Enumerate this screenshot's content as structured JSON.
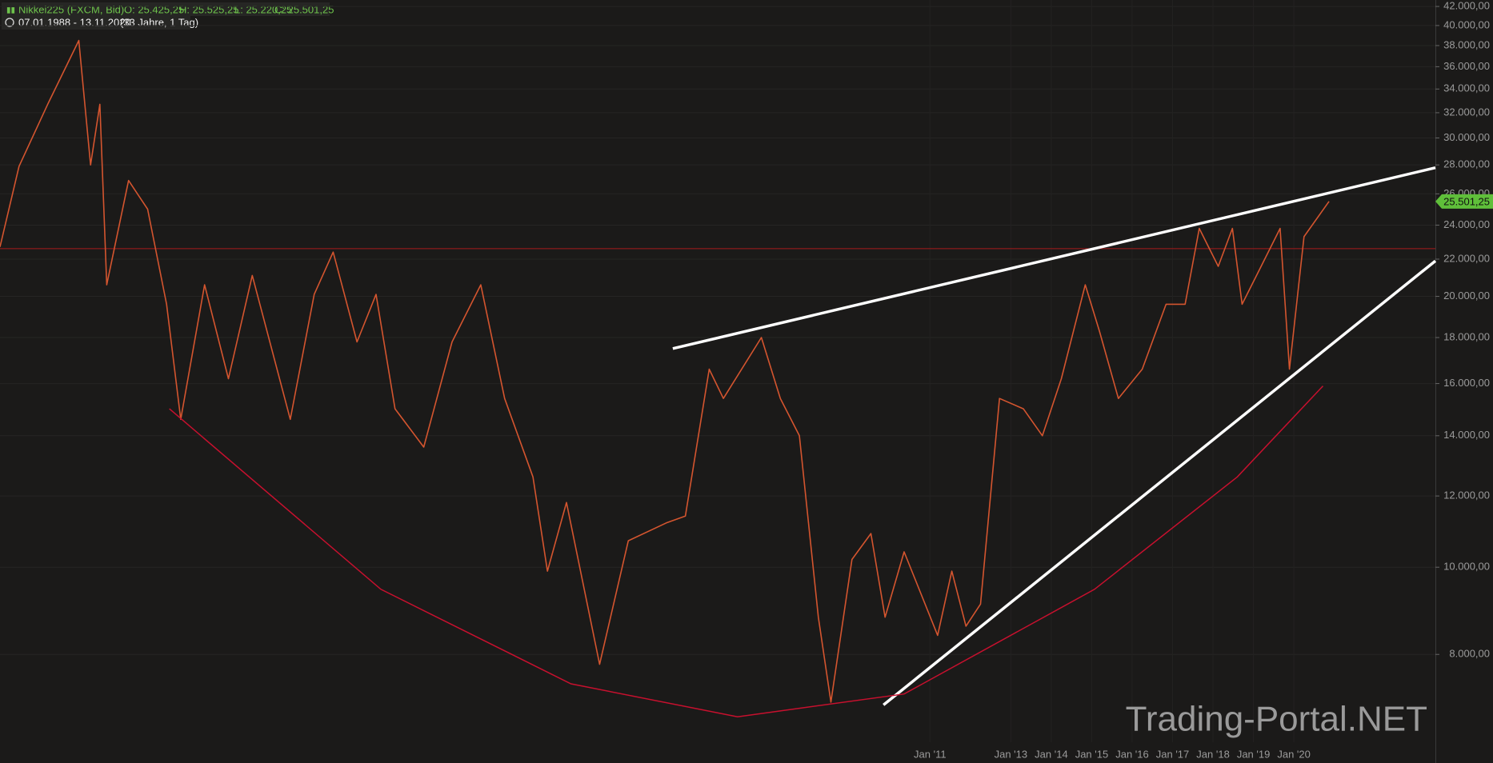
{
  "header": {
    "symbol": "Nikkei225 (FXCM, Bid)",
    "open": "O: 25.425,25",
    "high": "H: 25.525,25",
    "low": "L: 25.220,25",
    "close": "C: 25.501,25",
    "range": "07.01.1988 - 13.11.2020",
    "duration": "(33 Jahre, 1 Tag)"
  },
  "watermark": "Trading-Portal.NET",
  "chart_data": {
    "type": "line",
    "log": true,
    "grid": true,
    "color": "#d4552f",
    "x": [
      1988.0,
      1988.47,
      1989.18,
      1989.95,
      1990.24,
      1990.47,
      1990.64,
      1991.18,
      1991.65,
      1992.12,
      1992.47,
      1993.06,
      1993.65,
      1994.24,
      1995.18,
      1995.77,
      1996.24,
      1996.83,
      1997.3,
      1997.77,
      1998.48,
      1999.18,
      1999.89,
      2000.48,
      2001.18,
      2001.54,
      2002.01,
      2002.83,
      2003.54,
      2004.48,
      2004.95,
      2005.54,
      2005.89,
      2006.83,
      2007.3,
      2007.77,
      2008.24,
      2008.55,
      2009.07,
      2009.54,
      2009.89,
      2010.36,
      2011.19,
      2011.54,
      2011.89,
      2012.25,
      2012.72,
      2013.31,
      2013.78,
      2014.25,
      2014.84,
      2015.19,
      2015.66,
      2016.25,
      2016.84,
      2017.31,
      2017.66,
      2018.13,
      2018.48,
      2018.72,
      2019.19,
      2019.66,
      2019.89,
      2020.25,
      2020.87
    ],
    "values": [
      22700,
      27900,
      32700,
      38500,
      28000,
      32700,
      20600,
      26900,
      25000,
      19600,
      14600,
      20600,
      16200,
      21100,
      14600,
      20100,
      22400,
      17800,
      20100,
      15000,
      13600,
      17800,
      20600,
      15400,
      12600,
      9900,
      11800,
      7800,
      10700,
      11200,
      11400,
      16600,
      15400,
      18000,
      15400,
      14000,
      8800,
      7080,
      10200,
      10900,
      8800,
      10400,
      8400,
      9900,
      8600,
      9100,
      15400,
      15000,
      14000,
      16200,
      20600,
      18300,
      15400,
      16600,
      19600,
      19600,
      23800,
      21600,
      23800,
      19600,
      21600,
      23800,
      16600,
      23300,
      25501.25
    ],
    "last_price": {
      "value": 25501.25,
      "label": "25.501,25"
    },
    "xlim": [
      1988.0,
      2023.5
    ],
    "xticks": [
      {
        "value": 2011,
        "label": "Jan '11"
      },
      {
        "value": 2013,
        "label": "Jan '13"
      },
      {
        "value": 2014,
        "label": "Jan '14"
      },
      {
        "value": 2015,
        "label": "Jan '15"
      },
      {
        "value": 2016,
        "label": "Jan '16"
      },
      {
        "value": 2017,
        "label": "Jan '17"
      },
      {
        "value": 2018,
        "label": "Jan '18"
      },
      {
        "value": 2019,
        "label": "Jan '19"
      },
      {
        "value": 2020,
        "label": "Jan '20"
      }
    ],
    "ylim": [
      6390,
      42700
    ],
    "yticks": [
      {
        "value": 8000,
        "label": "8.000,00"
      },
      {
        "value": 10000,
        "label": "10.000,00"
      },
      {
        "value": 12000,
        "label": "12.000,00"
      },
      {
        "value": 14000,
        "label": "14.000,00"
      },
      {
        "value": 16000,
        "label": "16.000,00"
      },
      {
        "value": 18000,
        "label": "18.000,00"
      },
      {
        "value": 20000,
        "label": "20.000,00"
      },
      {
        "value": 22000,
        "label": "22.000,00"
      },
      {
        "value": 24000,
        "label": "24.000,00"
      },
      {
        "value": 26000,
        "label": "26.000,00"
      },
      {
        "value": 28000,
        "label": "28.000,00"
      },
      {
        "value": 30000,
        "label": "30.000,00"
      },
      {
        "value": 32000,
        "label": "32.000,00"
      },
      {
        "value": 34000,
        "label": "34.000,00"
      },
      {
        "value": 36000,
        "label": "36.000,00"
      },
      {
        "value": 38000,
        "label": "38.000,00"
      },
      {
        "value": 40000,
        "label": "40.000,00"
      },
      {
        "value": 42000,
        "label": "42.000,00"
      }
    ],
    "hlines": [
      {
        "value": 22600,
        "color": "#a81b1b"
      }
    ],
    "trendlines": [
      {
        "x": [
          2004.64,
          2023.5
        ],
        "y": [
          17500,
          27800
        ],
        "color": "#ffffff",
        "width": 3.5
      },
      {
        "x": [
          2009.85,
          2023.5
        ],
        "y": [
          7030,
          21900
        ],
        "color": "#ffffff",
        "width": 3.5
      },
      {
        "x": [
          1992.19,
          1997.42,
          2002.12,
          2006.24,
          2010.36,
          2015.07,
          2018.6,
          2020.72
        ],
        "y": [
          15000,
          9450,
          7420,
          6820,
          7230,
          9450,
          12600,
          15900
        ],
        "color": "#c8102e",
        "width": 1.5
      }
    ]
  }
}
